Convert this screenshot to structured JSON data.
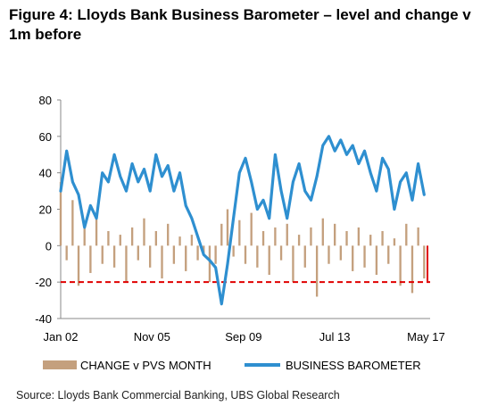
{
  "figure": {
    "title": "Figure 4: Lloyds Bank Business Barometer – level and change v 1m before",
    "source": "Source: Lloyds Bank Commercial Banking, UBS Global Research"
  },
  "chart_data": {
    "type": "bar+line",
    "ylim": [
      -40,
      80
    ],
    "yticks": [
      "80",
      "60",
      "40",
      "20",
      "0",
      "-20",
      "-40"
    ],
    "ytick_values": [
      80,
      60,
      40,
      20,
      0,
      -20,
      -40
    ],
    "xticks": [
      "Jan 02",
      "Nov 05",
      "Sep 09",
      "Jul 13",
      "May 17"
    ],
    "xtick_values": [
      2002.0,
      2005.83,
      2009.67,
      2013.5,
      2017.33
    ],
    "xlim": [
      2002.0,
      2017.5
    ],
    "reference_line": {
      "value": -20,
      "color": "#e00000"
    },
    "grid": false,
    "legend_position": "bottom",
    "series": [
      {
        "name": "CHANGE v PVS MONTH",
        "type": "bar",
        "color": "#c4a07e",
        "x": [
          2002.0,
          2002.25,
          2002.5,
          2002.75,
          2003.0,
          2003.25,
          2003.5,
          2003.75,
          2004.0,
          2004.25,
          2004.5,
          2004.75,
          2005.0,
          2005.25,
          2005.5,
          2005.75,
          2006.0,
          2006.25,
          2006.5,
          2006.75,
          2007.0,
          2007.25,
          2007.5,
          2007.75,
          2008.0,
          2008.25,
          2008.5,
          2008.75,
          2009.0,
          2009.25,
          2009.5,
          2009.75,
          2010.0,
          2010.25,
          2010.5,
          2010.75,
          2011.0,
          2011.25,
          2011.5,
          2011.75,
          2012.0,
          2012.25,
          2012.5,
          2012.75,
          2013.0,
          2013.25,
          2013.5,
          2013.75,
          2014.0,
          2014.25,
          2014.5,
          2014.75,
          2015.0,
          2015.25,
          2015.5,
          2015.75,
          2016.0,
          2016.25,
          2016.5,
          2016.75,
          2017.0,
          2017.25
        ],
        "values": [
          35,
          -8,
          25,
          -22,
          10,
          -15,
          18,
          -10,
          8,
          -12,
          6,
          -20,
          10,
          -8,
          15,
          -12,
          8,
          -18,
          12,
          -10,
          5,
          -14,
          6,
          -8,
          -5,
          -20,
          -10,
          12,
          20,
          -6,
          14,
          -10,
          18,
          -12,
          8,
          -16,
          10,
          -8,
          12,
          -20,
          6,
          -12,
          10,
          -28,
          15,
          -10,
          12,
          -8,
          8,
          -14,
          10,
          -12,
          6,
          -16,
          8,
          -10,
          4,
          -22,
          12,
          -26,
          10,
          -18
        ]
      },
      {
        "name": "BUSINESS BAROMETER",
        "type": "line",
        "color": "#2e8fd0",
        "x": [
          2002.0,
          2002.25,
          2002.5,
          2002.75,
          2003.0,
          2003.25,
          2003.5,
          2003.75,
          2004.0,
          2004.25,
          2004.5,
          2004.75,
          2005.0,
          2005.25,
          2005.5,
          2005.75,
          2006.0,
          2006.25,
          2006.5,
          2006.75,
          2007.0,
          2007.25,
          2007.5,
          2007.75,
          2008.0,
          2008.25,
          2008.5,
          2008.75,
          2009.0,
          2009.25,
          2009.5,
          2009.75,
          2010.0,
          2010.25,
          2010.5,
          2010.75,
          2011.0,
          2011.25,
          2011.5,
          2011.75,
          2012.0,
          2012.25,
          2012.5,
          2012.75,
          2013.0,
          2013.25,
          2013.5,
          2013.75,
          2014.0,
          2014.25,
          2014.5,
          2014.75,
          2015.0,
          2015.25,
          2015.5,
          2015.75,
          2016.0,
          2016.25,
          2016.5,
          2016.75,
          2017.0,
          2017.25
        ],
        "values": [
          30,
          52,
          35,
          28,
          10,
          22,
          15,
          40,
          35,
          50,
          38,
          30,
          45,
          35,
          42,
          30,
          50,
          38,
          44,
          30,
          40,
          22,
          15,
          5,
          -5,
          -8,
          -12,
          -32,
          -10,
          15,
          40,
          48,
          35,
          20,
          25,
          15,
          50,
          30,
          15,
          35,
          45,
          30,
          25,
          38,
          55,
          60,
          52,
          58,
          50,
          55,
          45,
          52,
          40,
          30,
          48,
          42,
          20,
          35,
          40,
          25,
          45,
          28
        ]
      }
    ]
  }
}
